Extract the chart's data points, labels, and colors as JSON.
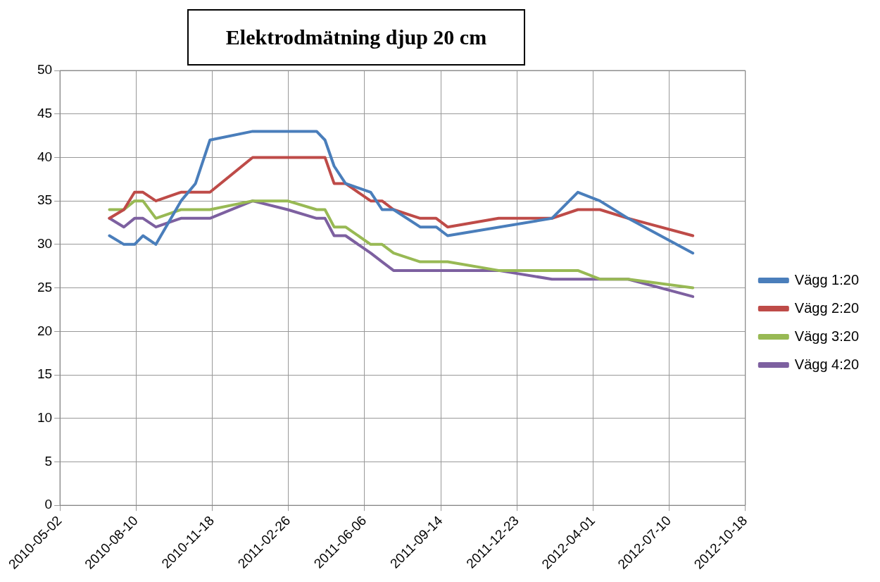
{
  "chart_data": {
    "type": "line",
    "title": "Elektrodmätning djup 20 cm",
    "xlim": [
      "2010-05-02",
      "2012-10-18"
    ],
    "xticks": [
      "2010-05-02",
      "2010-08-10",
      "2010-11-18",
      "2011-02-26",
      "2011-06-06",
      "2011-09-14",
      "2011-12-23",
      "2012-04-01",
      "2012-07-10",
      "2012-10-18"
    ],
    "ylim": [
      0,
      50
    ],
    "yticks": [
      0,
      5,
      10,
      15,
      20,
      25,
      30,
      35,
      40,
      45,
      50
    ],
    "grid": true,
    "legend": "right",
    "marker": "none",
    "line_style": "solid",
    "series": [
      {
        "name": "Vägg 1:20",
        "color": "#4a7ebb",
        "x": [
          "2010-07-06",
          "2010-07-25",
          "2010-08-08",
          "2010-08-19",
          "2010-09-05",
          "2010-10-08",
          "2010-10-27",
          "2010-11-15",
          "2011-01-10",
          "2011-04-04",
          "2011-04-15",
          "2011-04-27",
          "2011-05-12",
          "2011-06-14",
          "2011-06-29",
          "2011-07-14",
          "2011-08-18",
          "2011-09-08",
          "2011-09-23",
          "2012-02-07",
          "2012-03-12",
          "2012-04-10",
          "2012-05-17",
          "2012-08-10"
        ],
        "values": [
          31,
          30,
          30,
          31,
          30,
          35,
          37,
          42,
          43,
          43,
          42,
          39,
          37,
          36,
          34,
          34,
          32,
          32,
          31,
          33,
          36,
          35,
          33,
          29
        ]
      },
      {
        "name": "Vägg 2:20",
        "color": "#be4b48",
        "x": [
          "2010-07-06",
          "2010-07-25",
          "2010-08-08",
          "2010-08-19",
          "2010-09-05",
          "2010-10-08",
          "2010-11-15",
          "2011-01-10",
          "2011-04-15",
          "2011-04-27",
          "2011-05-12",
          "2011-06-14",
          "2011-06-29",
          "2011-07-14",
          "2011-08-18",
          "2011-09-08",
          "2011-09-23",
          "2011-11-29",
          "2012-02-07",
          "2012-03-12",
          "2012-04-10",
          "2012-05-17",
          "2012-08-10"
        ],
        "values": [
          33,
          34,
          36,
          36,
          35,
          36,
          36,
          40,
          40,
          37,
          37,
          35,
          35,
          34,
          33,
          33,
          32,
          33,
          33,
          34,
          34,
          33,
          31
        ]
      },
      {
        "name": "Vägg 3:20",
        "color": "#98b954",
        "x": [
          "2010-07-06",
          "2010-07-25",
          "2010-08-08",
          "2010-08-19",
          "2010-09-05",
          "2010-10-08",
          "2010-11-15",
          "2011-01-10",
          "2011-02-25",
          "2011-04-04",
          "2011-04-15",
          "2011-04-27",
          "2011-05-12",
          "2011-06-14",
          "2011-06-29",
          "2011-07-14",
          "2011-08-18",
          "2011-09-23",
          "2011-11-29",
          "2012-03-12",
          "2012-04-10",
          "2012-05-17",
          "2012-08-10"
        ],
        "values": [
          34,
          34,
          35,
          35,
          33,
          34,
          34,
          35,
          35,
          34,
          34,
          32,
          32,
          30,
          30,
          29,
          28,
          28,
          27,
          27,
          26,
          26,
          25
        ]
      },
      {
        "name": "Vägg 4:20",
        "color": "#7d60a0",
        "x": [
          "2010-07-06",
          "2010-07-25",
          "2010-08-08",
          "2010-08-19",
          "2010-09-05",
          "2010-10-08",
          "2010-11-15",
          "2011-01-10",
          "2011-02-25",
          "2011-04-04",
          "2011-04-15",
          "2011-04-27",
          "2011-05-12",
          "2011-06-14",
          "2011-06-29",
          "2011-07-14",
          "2011-08-18",
          "2011-09-23",
          "2011-11-29",
          "2012-02-07",
          "2012-04-10",
          "2012-05-17",
          "2012-08-10"
        ],
        "values": [
          33,
          32,
          33,
          33,
          32,
          33,
          33,
          35,
          34,
          33,
          33,
          31,
          31,
          29,
          28,
          27,
          27,
          27,
          27,
          26,
          26,
          26,
          24
        ]
      }
    ]
  }
}
